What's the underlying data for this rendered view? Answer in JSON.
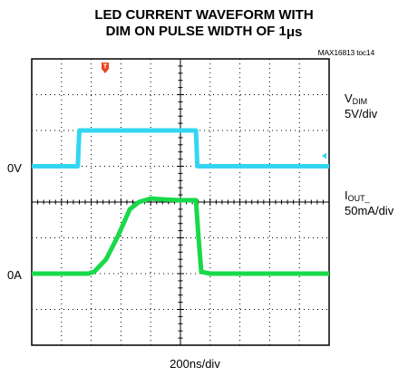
{
  "title_line1": "LED CURRENT WAVEFORM WITH",
  "title_line2_prefix": "DIM ON PULSE WIDTH OF 1",
  "title_line2_unit": "μs",
  "doc_id": "MAX16813 toc14",
  "trigger_marker": "T",
  "colors": {
    "vdim": "#33d6f2",
    "iout": "#19d94a",
    "trigger": "#e8451f",
    "grid": "#000000"
  },
  "channels": [
    {
      "main": "V",
      "sub": "DIM",
      "scale": "5V/div",
      "ground": "0V"
    },
    {
      "main": "I",
      "sub": "OUT_",
      "scale": "50mA/div",
      "ground": "0A"
    }
  ],
  "x_axis_label": "200ns/div",
  "chart_data": {
    "type": "line",
    "x_unit": "div",
    "xlim": [
      0,
      10
    ],
    "ylim": [
      -4,
      4
    ],
    "grid": true,
    "series": [
      {
        "name": "V",
        "x": [
          0,
          1.55,
          1.6,
          5.52,
          5.57,
          10
        ],
        "y": [
          1.0,
          1.0,
          2.0,
          2.0,
          1.0,
          1.0
        ]
      },
      {
        "name": "I",
        "x": [
          0,
          1.9,
          2.1,
          2.5,
          2.9,
          3.3,
          3.6,
          4.0,
          4.5,
          5.0,
          5.52,
          5.6,
          5.7,
          6.0,
          7.0,
          8.5,
          10
        ],
        "y": [
          -2.0,
          -2.0,
          -1.95,
          -1.6,
          -0.95,
          -0.2,
          0.0,
          0.1,
          0.07,
          0.05,
          0.05,
          -0.9,
          -1.95,
          -2.0,
          -2.0,
          -2.0,
          -2.0
        ]
      }
    ]
  }
}
